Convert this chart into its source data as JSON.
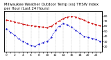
{
  "title_line1": "Milwaukee Weather Outdoor Temp (vs) THSW Index",
  "title_line2": "per Hour (Last 24 Hours)",
  "red_line": [
    72,
    70,
    68,
    66,
    64,
    62,
    61,
    60,
    59,
    58,
    57,
    60,
    65,
    70,
    75,
    78,
    79,
    78,
    75,
    72,
    68,
    65,
    63,
    61
  ],
  "blue_line": [
    55,
    48,
    42,
    35,
    30,
    26,
    22,
    20,
    25,
    28,
    30,
    38,
    52,
    60,
    65,
    62,
    58,
    52,
    46,
    40,
    38,
    36,
    34,
    30
  ],
  "red_color": "#cc0000",
  "blue_color": "#0000cc",
  "bg_color": "#ffffff",
  "ylim": [
    10,
    90
  ],
  "yticks_right": [
    20,
    30,
    40,
    50,
    60,
    70,
    80
  ],
  "hours": [
    0,
    1,
    2,
    3,
    4,
    5,
    6,
    7,
    8,
    9,
    10,
    11,
    12,
    13,
    14,
    15,
    16,
    17,
    18,
    19,
    20,
    21,
    22,
    23
  ],
  "grid_color": "#bbbbbb",
  "title_fontsize": 3.8,
  "tick_fontsize": 3.2,
  "line_width": 0.7,
  "marker_size": 1.2
}
